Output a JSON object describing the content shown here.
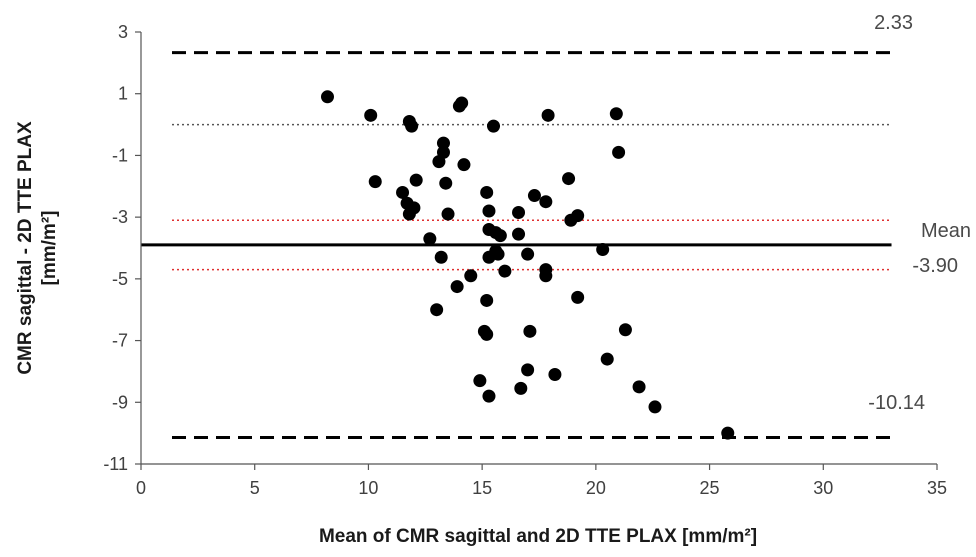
{
  "chart_data": {
    "type": "scatter",
    "title": "",
    "xlabel": "Mean of CMR sagittal and 2D TTE PLAX [mm/m²]",
    "ylabel_line1": "CMR sagittal - 2D TTE PLAX",
    "ylabel_line2": "[mm/m²]",
    "xlim": [
      0,
      35
    ],
    "ylim": [
      -11,
      3
    ],
    "x_ticks": [
      0,
      5,
      10,
      15,
      20,
      25,
      30,
      35
    ],
    "y_ticks": [
      3,
      1,
      -1,
      -3,
      -5,
      -7,
      -9,
      -11
    ],
    "grid": false,
    "reference_lines": {
      "mean": -3.9,
      "upper_loa": 2.33,
      "lower_loa": -10.14,
      "zero": 0,
      "mean_ci": [
        -3.1,
        -4.7
      ]
    },
    "annotations": {
      "upper_loa_label": "2.33",
      "mean_word": "Mean",
      "mean_value_label": "-3.90",
      "lower_loa_label": "-10.14"
    },
    "points": [
      [
        8.2,
        0.9
      ],
      [
        10.1,
        0.3
      ],
      [
        10.3,
        -1.85
      ],
      [
        11.5,
        -2.2
      ],
      [
        11.7,
        -2.55
      ],
      [
        11.8,
        0.1
      ],
      [
        11.8,
        -2.9
      ],
      [
        11.9,
        -0.05
      ],
      [
        12.0,
        -2.7
      ],
      [
        12.1,
        -1.8
      ],
      [
        12.7,
        -3.7
      ],
      [
        13.0,
        -6.0
      ],
      [
        13.1,
        -1.2
      ],
      [
        13.2,
        -4.3
      ],
      [
        13.3,
        -0.6
      ],
      [
        13.3,
        -0.9
      ],
      [
        13.4,
        -1.9
      ],
      [
        13.5,
        -2.9
      ],
      [
        13.9,
        -5.25
      ],
      [
        14.0,
        0.6
      ],
      [
        14.1,
        0.7
      ],
      [
        14.2,
        -1.3
      ],
      [
        14.5,
        -4.9
      ],
      [
        14.9,
        -8.3
      ],
      [
        15.1,
        -6.7
      ],
      [
        15.2,
        -6.8
      ],
      [
        15.2,
        -5.7
      ],
      [
        15.2,
        -2.2
      ],
      [
        15.3,
        -2.8
      ],
      [
        15.3,
        -4.3
      ],
      [
        15.3,
        -8.8
      ],
      [
        15.3,
        -3.4
      ],
      [
        15.5,
        -0.05
      ],
      [
        15.6,
        -3.5
      ],
      [
        15.6,
        -4.1
      ],
      [
        15.7,
        -4.2
      ],
      [
        15.8,
        -3.6
      ],
      [
        16.0,
        -4.75
      ],
      [
        16.6,
        -2.85
      ],
      [
        16.6,
        -3.55
      ],
      [
        16.7,
        -8.55
      ],
      [
        17.0,
        -4.2
      ],
      [
        17.0,
        -7.95
      ],
      [
        17.1,
        -6.7
      ],
      [
        17.3,
        -2.3
      ],
      [
        17.8,
        -4.7
      ],
      [
        17.8,
        -4.9
      ],
      [
        17.8,
        -2.5
      ],
      [
        17.9,
        0.3
      ],
      [
        18.2,
        -8.1
      ],
      [
        18.8,
        -1.75
      ],
      [
        18.9,
        -3.1
      ],
      [
        19.2,
        -2.95
      ],
      [
        19.2,
        -5.6
      ],
      [
        20.3,
        -4.05
      ],
      [
        20.5,
        -7.6
      ],
      [
        20.9,
        0.35
      ],
      [
        21.0,
        -0.9
      ],
      [
        21.3,
        -6.65
      ],
      [
        21.9,
        -8.5
      ],
      [
        22.6,
        -9.15
      ],
      [
        25.8,
        -10.0
      ]
    ]
  }
}
